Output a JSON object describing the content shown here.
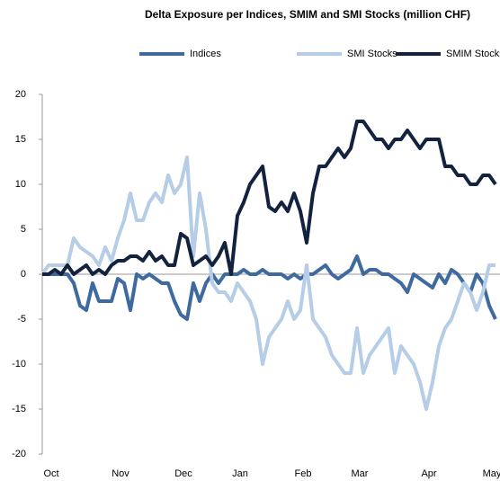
{
  "chart_data": {
    "type": "line",
    "title": "Delta Exposure per Indices, SMIM and SMI Stocks (million CHF)",
    "categories": [
      null,
      "Oct",
      null,
      null,
      null,
      null,
      null,
      null,
      null,
      null,
      null,
      null,
      "Nov",
      null,
      null,
      null,
      null,
      null,
      null,
      null,
      null,
      null,
      "Dec",
      null,
      null,
      null,
      null,
      null,
      null,
      null,
      null,
      "Jan",
      null,
      null,
      null,
      null,
      null,
      null,
      null,
      null,
      null,
      "Feb",
      null,
      null,
      null,
      null,
      null,
      null,
      null,
      null,
      "Mar",
      null,
      null,
      null,
      null,
      null,
      null,
      null,
      null,
      null,
      null,
      "Apr",
      null,
      null,
      null,
      null,
      null,
      null,
      null,
      null,
      null,
      "May",
      null
    ],
    "series": [
      {
        "name": "Indices",
        "color": "#3e6a9f",
        "values": [
          0,
          0,
          0,
          0,
          0,
          -1,
          -3.5,
          -4,
          -1,
          -3,
          -3,
          -3,
          -0.5,
          -1,
          -4,
          0,
          -0.5,
          0,
          -0.5,
          -1,
          -1,
          -3,
          -4.5,
          -5,
          -1,
          -3,
          -1,
          0,
          -1,
          0,
          0,
          0,
          0.5,
          0,
          0,
          0.5,
          0,
          0,
          0,
          -0.5,
          0,
          -0.5,
          0,
          0,
          0.5,
          1,
          0,
          -0.5,
          0,
          0.5,
          2,
          0,
          0.5,
          0.5,
          0,
          0,
          -0.5,
          -1,
          -2,
          0,
          -0.5,
          -1,
          -1.5,
          0,
          -1,
          0.5,
          0,
          -1,
          -2,
          0,
          -1,
          -3.5,
          -5
        ]
      },
      {
        "name": "SMI Stocks",
        "color": "#b5cde6",
        "values": [
          0,
          1,
          1,
          1,
          1,
          4,
          3,
          2.5,
          2,
          1,
          3,
          1.5,
          4,
          6,
          9,
          6,
          6,
          8,
          9,
          8,
          11,
          9,
          10,
          13,
          2,
          9,
          5,
          -1,
          -2,
          -2,
          -3,
          -1,
          -2,
          -3,
          -5,
          -10,
          -7,
          -6,
          -5,
          -3,
          -5,
          -4,
          1,
          -5,
          -6,
          -7,
          -9,
          -10,
          -11,
          -11,
          -6,
          -11,
          -9,
          -8,
          -7,
          -6,
          -11,
          -8,
          -9,
          -10,
          -12,
          -15,
          -12,
          -8,
          -6,
          -5,
          -3,
          -1,
          -2,
          -4,
          -2,
          1,
          1
        ]
      },
      {
        "name": "SMIM Stocks",
        "color": "#13233f",
        "values": [
          0,
          0,
          0.5,
          0,
          1,
          0,
          0.5,
          1,
          0,
          0.5,
          0,
          1,
          1.5,
          1.5,
          2,
          2,
          1.5,
          2.5,
          1.5,
          2,
          1,
          1,
          4.5,
          4,
          1,
          1.5,
          2,
          1,
          2,
          3.5,
          0,
          6.5,
          8,
          10,
          11,
          12,
          7.5,
          7,
          8,
          7,
          9,
          7,
          3.5,
          9,
          12,
          12,
          13,
          14,
          13,
          14,
          17,
          17,
          16,
          15,
          15,
          14,
          15,
          15,
          16,
          15,
          14,
          15,
          15,
          15,
          12,
          12,
          11,
          11,
          10,
          10,
          11,
          11,
          10
        ]
      }
    ],
    "ylim": [
      -20,
      20
    ],
    "yticks": [
      -20,
      -15,
      -10,
      -5,
      0,
      5,
      10,
      15,
      20
    ]
  }
}
